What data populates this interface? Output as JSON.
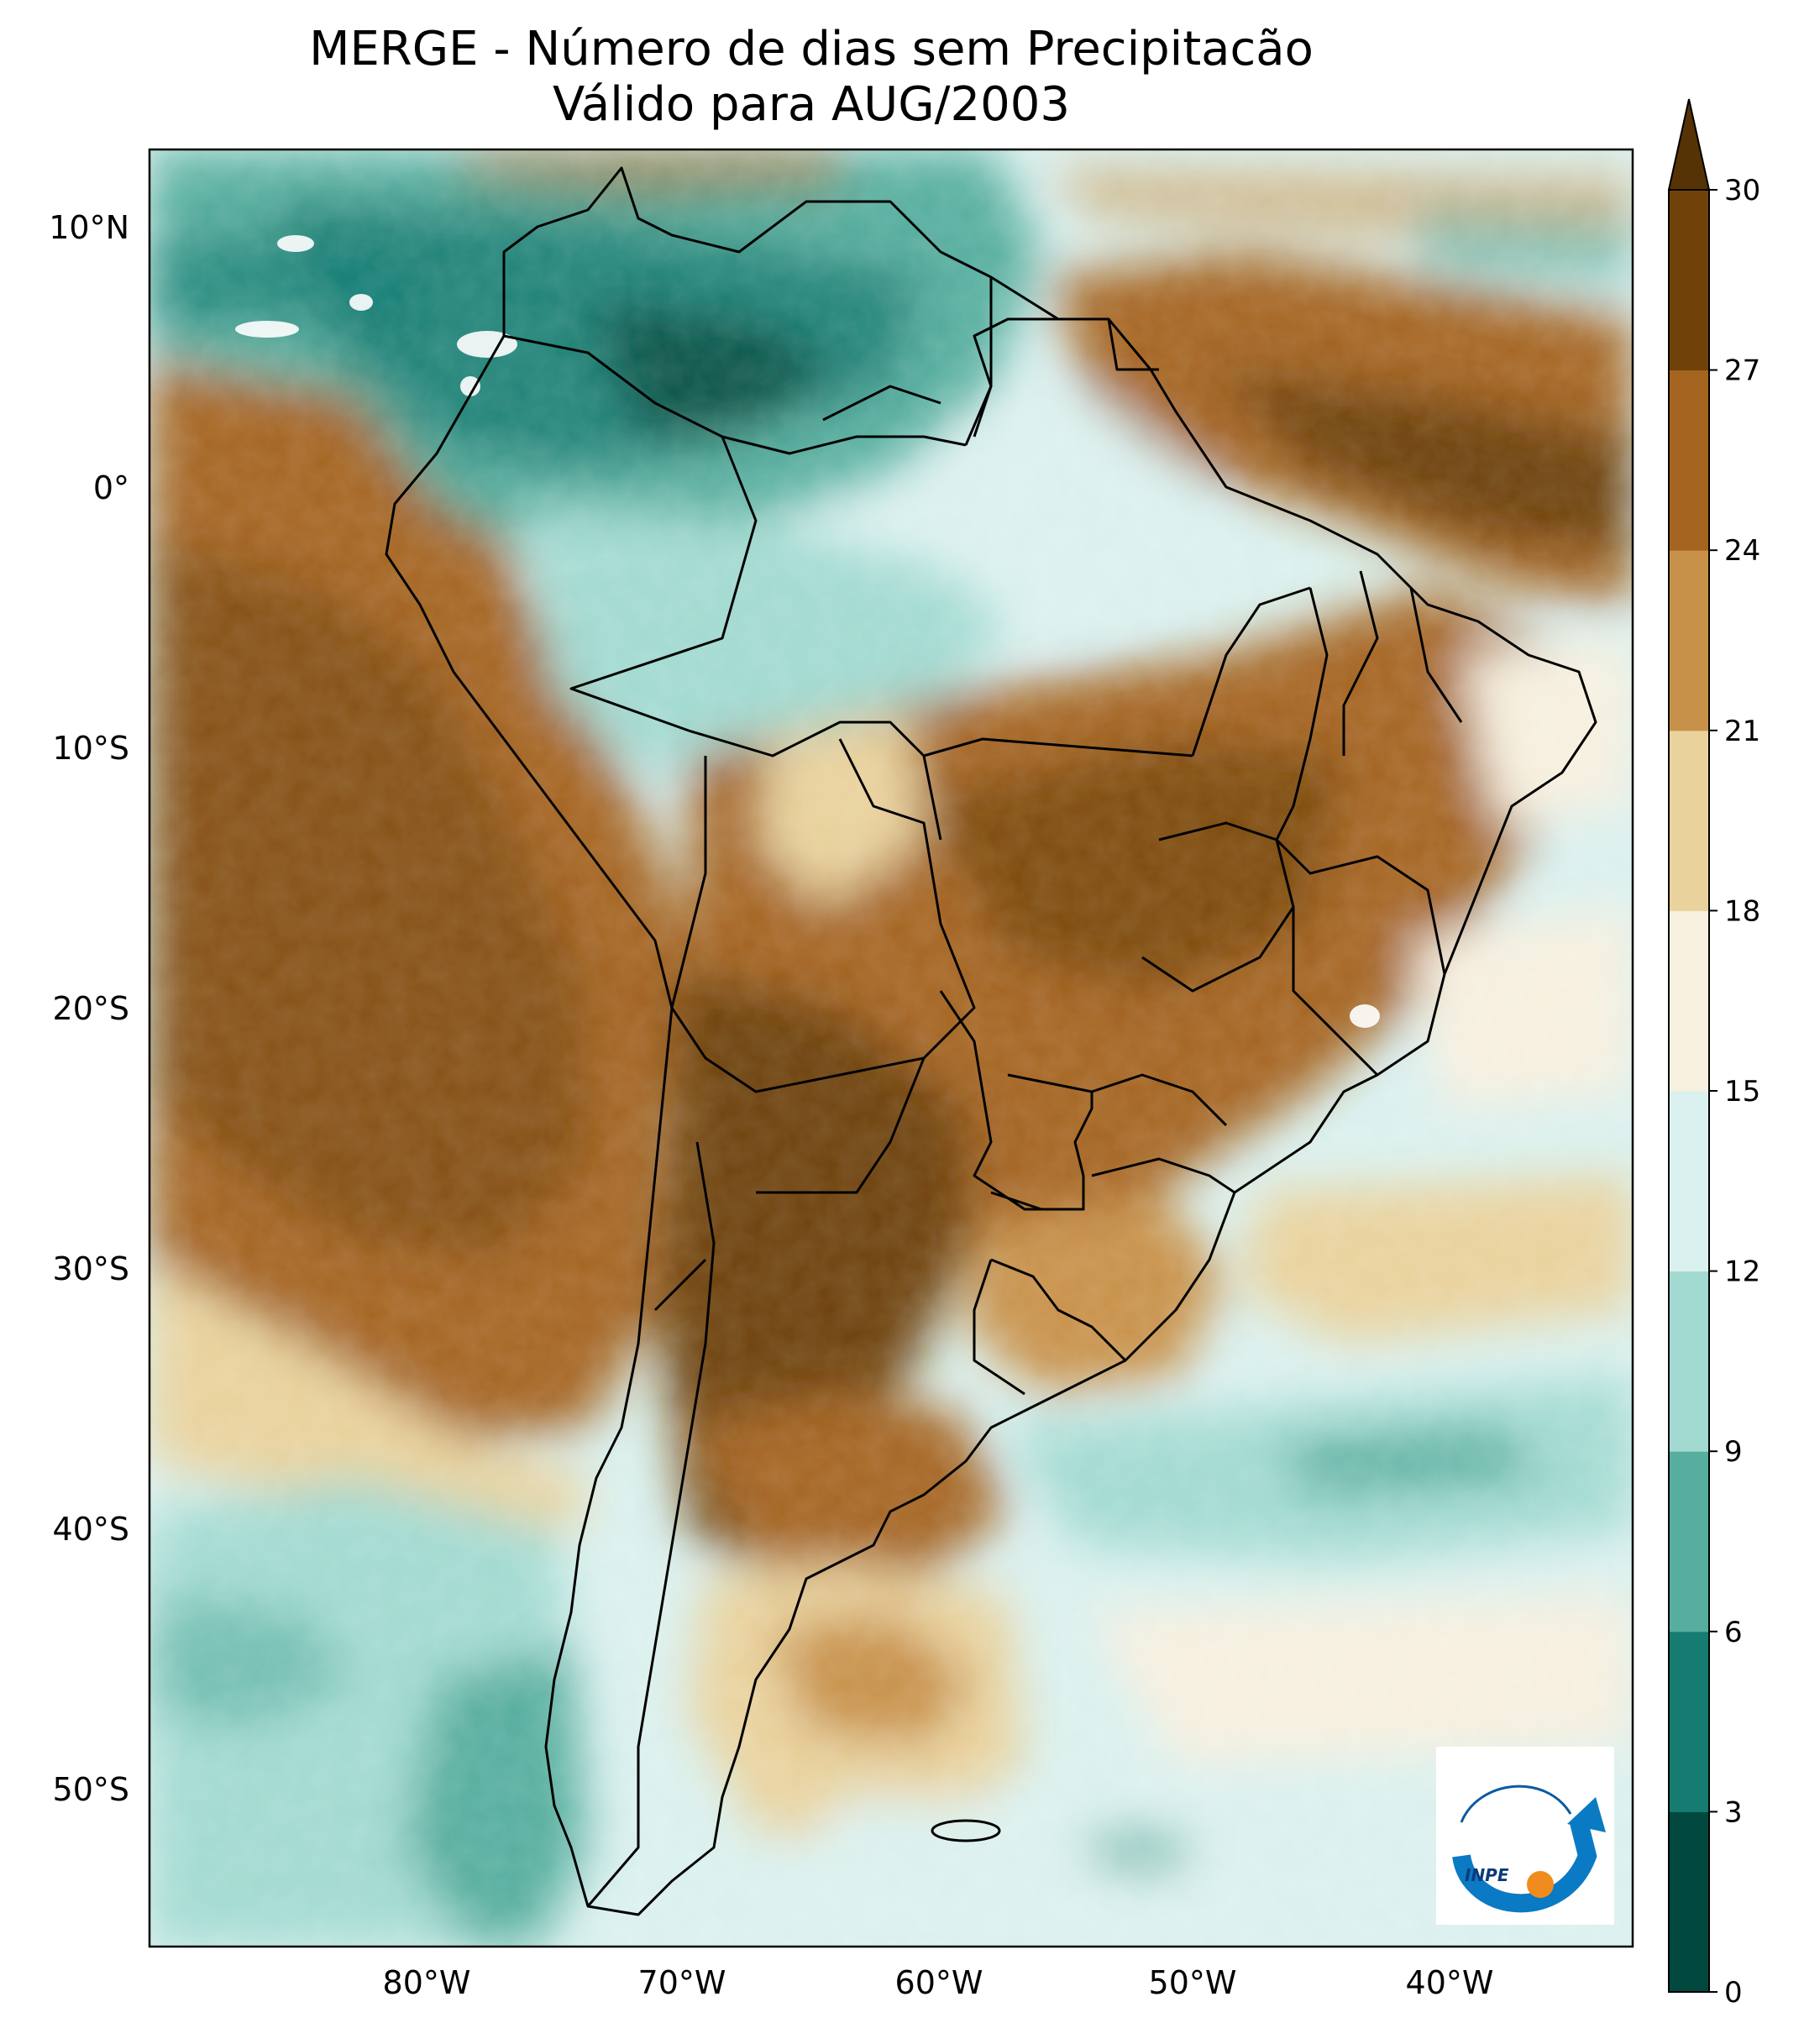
{
  "title": {
    "line1": "MERGE - Número de dias sem Precipitacão",
    "line2": "Válido para AUG/2003"
  },
  "map": {
    "region": "South America",
    "lat_labels": [
      "10°N",
      "0°",
      "10°S",
      "20°S",
      "30°S",
      "40°S",
      "50°S"
    ],
    "lon_labels": [
      "80°W",
      "70°W",
      "60°W",
      "50°W",
      "40°W"
    ]
  },
  "colorbar": {
    "ticks": [
      "0",
      "3",
      "6",
      "9",
      "12",
      "15",
      "18",
      "21",
      "24",
      "27",
      "30"
    ],
    "colors": [
      "#01493f",
      "#167c72",
      "#56ae9f",
      "#a2dad1",
      "#dbf1ef",
      "#f7f0df",
      "#e9d29c",
      "#c8914a",
      "#a56520",
      "#6e4209",
      "#563305"
    ],
    "extend": "max"
  },
  "logo": {
    "text": "INPE"
  }
}
